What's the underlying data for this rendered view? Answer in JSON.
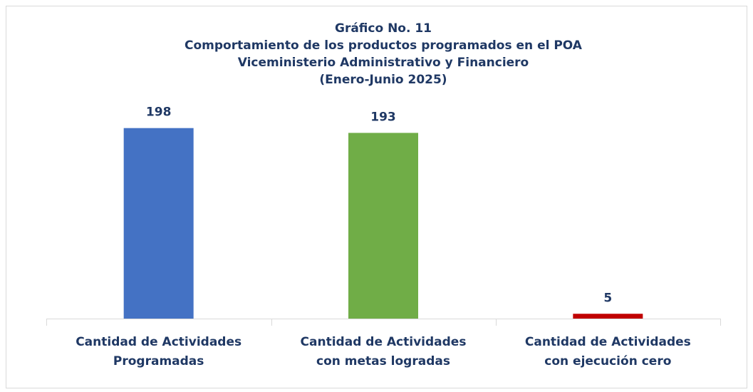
{
  "chart_data": {
    "type": "bar",
    "title": [
      "Gráfico No. 11",
      "Comportamiento de los productos programados en el POA",
      "Viceministerio Administrativo y Financiero",
      "(Enero-Junio 2025)"
    ],
    "categories": [
      [
        "Cantidad de Actividades",
        "Programadas"
      ],
      [
        "Cantidad de Actividades",
        "con metas logradas"
      ],
      [
        "Cantidad de Actividades",
        "con ejecución cero"
      ]
    ],
    "values": [
      198,
      193,
      5
    ],
    "colors": [
      "#4472c4",
      "#70ad47",
      "#c00000"
    ],
    "ylim": [
      0,
      220
    ]
  }
}
